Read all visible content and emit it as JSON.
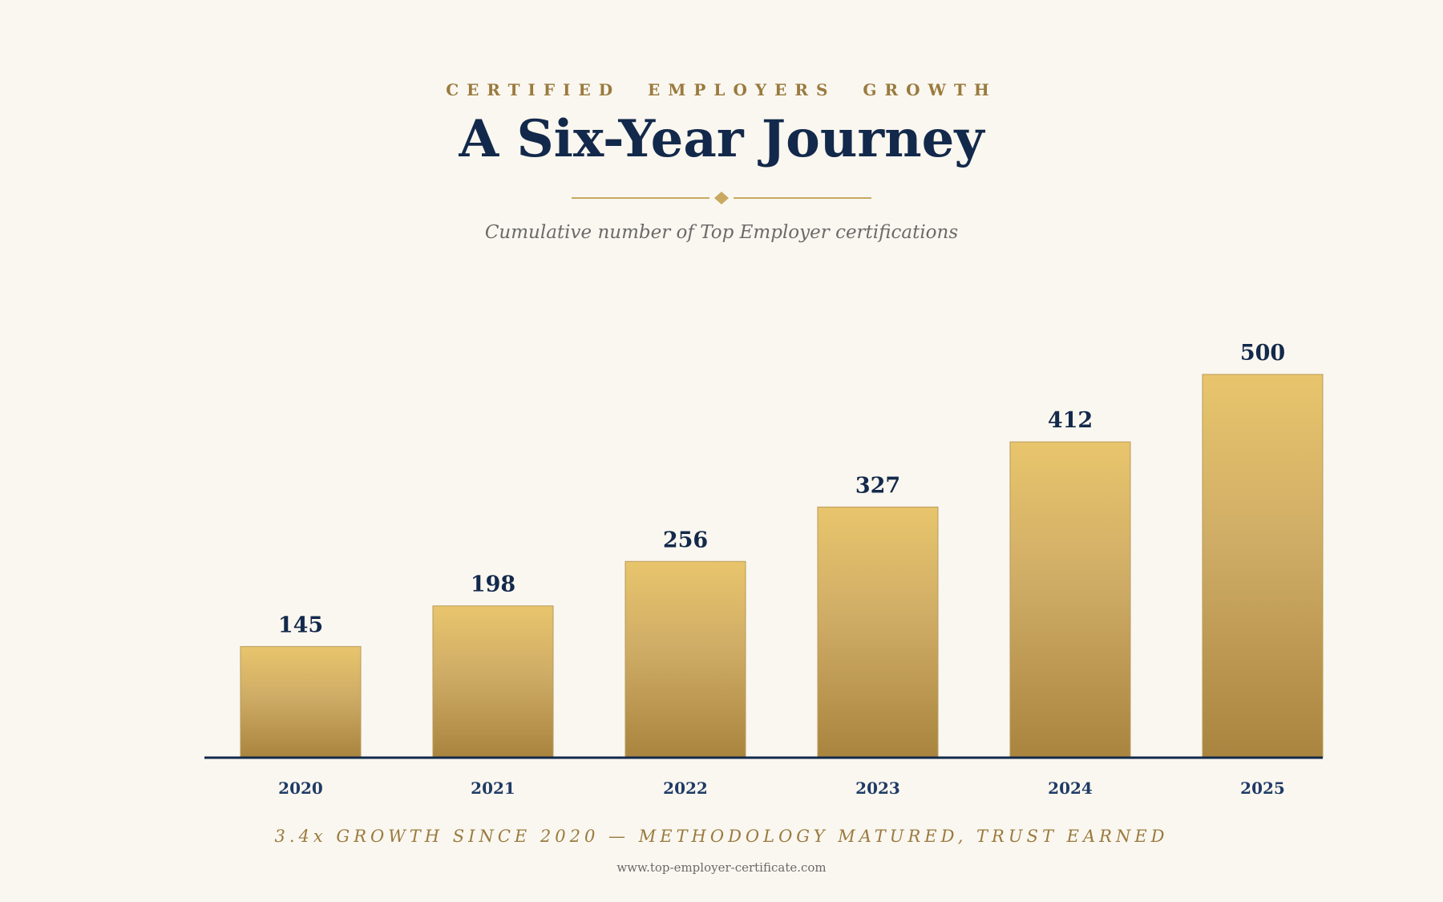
{
  "header": {
    "eyebrow": "CERTIFIED  EMPLOYERS  GROWTH",
    "title": "A Six-Year Journey",
    "subtitle": "Cumulative number of Top Employer certifications"
  },
  "colors": {
    "bar_top": "#e8c56c",
    "bar_mid": "#cfac66",
    "bar_bottom": "#a9843f",
    "axis": "#13294b",
    "accent": "#c9a862"
  },
  "chart_data": {
    "type": "bar",
    "categories": [
      "2020",
      "2021",
      "2022",
      "2023",
      "2024",
      "2025"
    ],
    "values": [
      145,
      198,
      256,
      327,
      412,
      500
    ],
    "title": "A Six-Year Journey",
    "xlabel": "",
    "ylabel": "",
    "ylim": [
      0,
      500
    ],
    "grid": false,
    "data_labels": true
  },
  "footer": {
    "tagline": "3.4x GROWTH SINCE 2020 — METHODOLOGY MATURED, TRUST EARNED",
    "website": "www.top-employer-certificate.com"
  }
}
